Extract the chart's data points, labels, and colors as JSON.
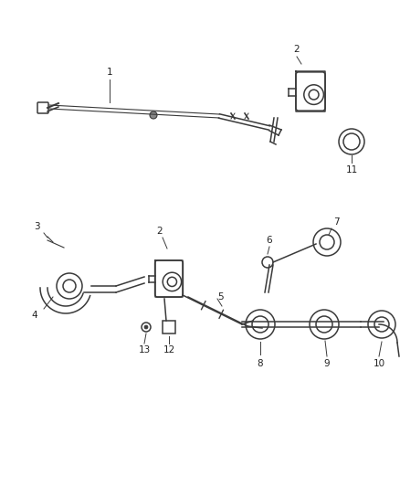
{
  "background_color": "#ffffff",
  "line_color": "#3a3a3a",
  "label_color": "#222222",
  "fig_width": 4.38,
  "fig_height": 5.33,
  "dpi": 100
}
